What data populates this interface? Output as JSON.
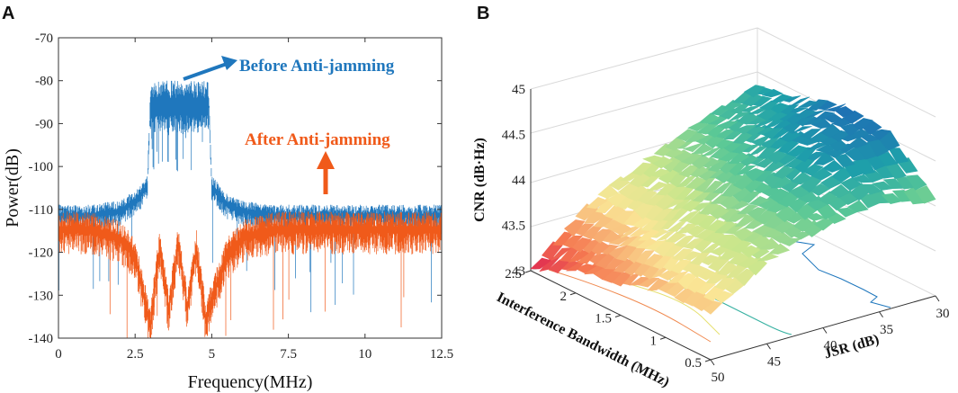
{
  "panels": [
    {
      "letter": "A"
    },
    {
      "letter": "B"
    }
  ],
  "colors": {
    "before": "#1f77bd",
    "after": "#f05a1a",
    "axis": "#333333",
    "grid3d": "#d9d9d9"
  },
  "chart_data": [
    {
      "type": "line",
      "panel": "A",
      "xlabel": "Frequency(MHz)",
      "ylabel": "Power(dB)",
      "xlim": [
        0,
        12.5
      ],
      "ylim": [
        -140,
        -70
      ],
      "xticks": [
        "0",
        "2.5",
        "5",
        "7.5",
        "10",
        "12.5"
      ],
      "xtick_values": [
        0,
        2.5,
        5,
        7.5,
        10,
        12.5
      ],
      "yticks": [
        "-70",
        "-80",
        "-90",
        "-100",
        "-110",
        "-120",
        "-130",
        "-140"
      ],
      "ytick_values": [
        -70,
        -80,
        -90,
        -100,
        -110,
        -120,
        -130,
        -140
      ],
      "series": [
        {
          "name": "Before Anti-jamming",
          "color": "#1f77bd",
          "description_points": {
            "x": [
              0,
              1,
              2,
              2.6,
              2.9,
              3.0,
              4.0,
              4.9,
              5.0,
              5.4,
              6,
              7,
              8,
              9,
              10,
              11,
              12.5
            ],
            "y": [
              -111,
              -111,
              -110,
              -107,
              -104,
              -84,
              -84,
              -84,
              -104,
              -108,
              -110,
              -111,
              -111,
              -111,
              -111,
              -111,
              -111
            ]
          }
        },
        {
          "name": "After Anti-jamming",
          "color": "#f05a1a",
          "description_points": {
            "x": [
              0,
              1,
              2,
              2.5,
              2.8,
              3.0,
              3.3,
              3.6,
              3.9,
              4.2,
              4.5,
              4.8,
              5.1,
              5.5,
              6,
              7,
              8,
              9,
              10,
              11,
              12.5
            ],
            "y": [
              -114,
              -114,
              -116,
              -120,
              -130,
              -136,
              -118,
              -133,
              -117,
              -132,
              -118,
              -135,
              -128,
              -120,
              -116,
              -114,
              -114,
              -114,
              -114,
              -114,
              -114
            ]
          }
        }
      ],
      "annotations": [
        {
          "text": "Before Anti-jamming",
          "color": "#1f77bd"
        },
        {
          "text": "After Anti-jamming",
          "color": "#f05a1a"
        }
      ]
    },
    {
      "type": "surface3d",
      "panel": "B",
      "zlabel": "CNR (dB·Hz)",
      "ylabel": "Interference Bandwidth (MHz)",
      "xlabel": "JSR (dB)",
      "zlim": [
        43,
        45
      ],
      "zticks": [
        "45",
        "44.5",
        "44",
        "43.5",
        "43"
      ],
      "ztick_values": [
        45,
        44.5,
        44,
        43.5,
        43
      ],
      "bw_ticks": [
        "2.5",
        "2",
        "1.5",
        "1",
        "0.5"
      ],
      "bw_values": [
        2.5,
        2,
        1.5,
        1,
        0.5
      ],
      "jsr_ticks": [
        "50",
        "45",
        "40",
        "35",
        "30"
      ],
      "jsr_values": [
        50,
        45,
        40,
        35,
        30
      ],
      "surface": {
        "bw": [
          2.5,
          2,
          1.5,
          1,
          0.5
        ],
        "jsr": [
          50,
          45,
          40,
          35,
          30
        ],
        "cnr": [
          [
            43.0,
            43.55,
            43.85,
            44.1,
            44.35
          ],
          [
            43.25,
            43.55,
            43.95,
            44.25,
            44.45
          ],
          [
            43.35,
            43.75,
            44.1,
            44.4,
            44.6
          ],
          [
            43.5,
            43.85,
            44.15,
            44.45,
            44.55
          ],
          [
            43.5,
            43.9,
            44.1,
            44.2,
            44.05
          ]
        ]
      }
    }
  ]
}
